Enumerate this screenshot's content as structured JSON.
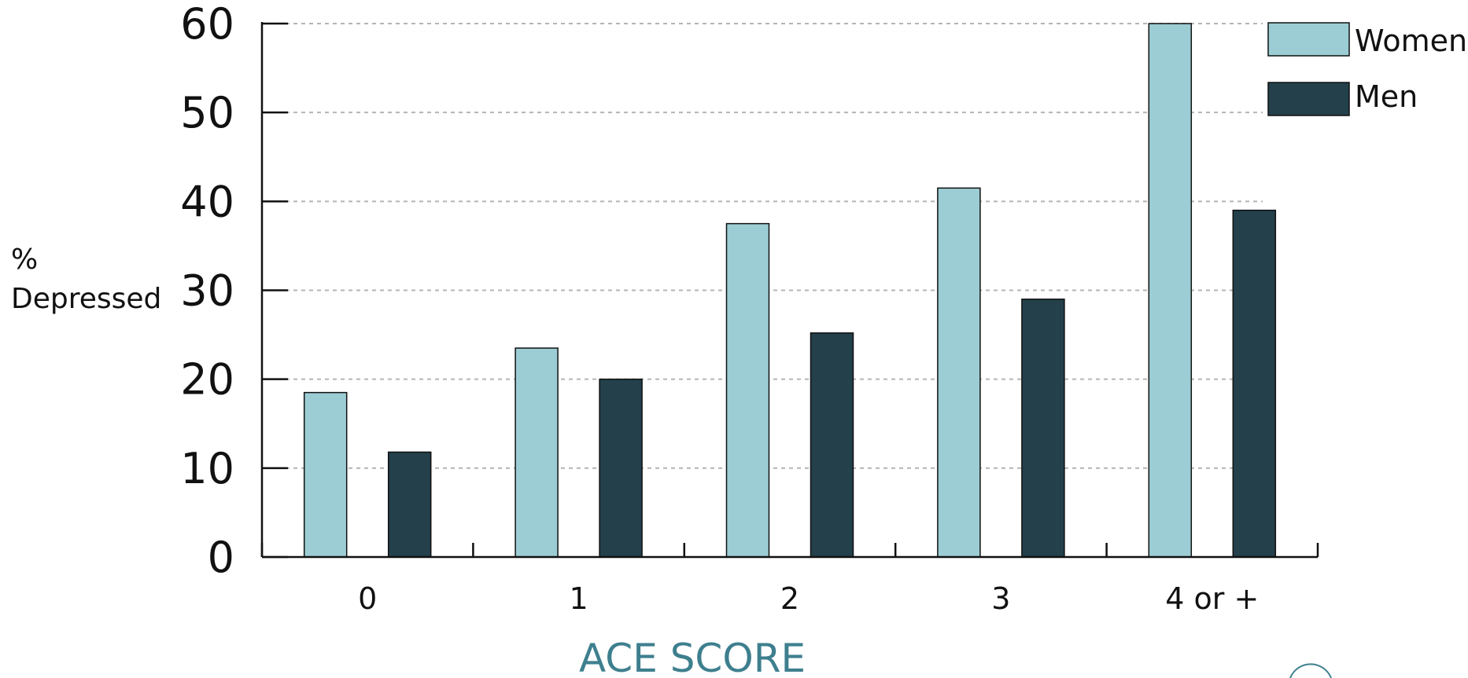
{
  "chart_data": {
    "type": "bar",
    "categories": [
      "0",
      "1",
      "2",
      "3",
      "4 or +"
    ],
    "series": [
      {
        "name": "Women",
        "values": [
          18.5,
          23.5,
          37.5,
          41.5,
          60
        ],
        "color": "#9ccdd4"
      },
      {
        "name": "Men",
        "values": [
          11.8,
          20,
          25.2,
          29,
          39
        ],
        "color": "#23404b"
      }
    ],
    "ylabel_lines": [
      "%",
      "Depressed"
    ],
    "xlabel": "ACE SCORE",
    "ylim": [
      0,
      60
    ],
    "yticks": [
      "0",
      "10",
      "20",
      "30",
      "40",
      "50",
      "60"
    ],
    "grid": true,
    "legend": "top-right"
  }
}
